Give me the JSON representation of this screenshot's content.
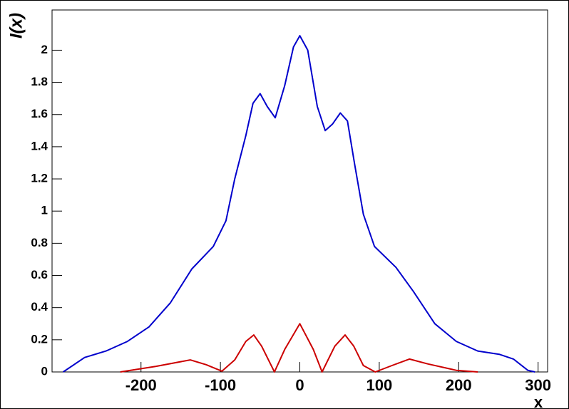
{
  "chart_data": {
    "type": "line",
    "x_label": "x",
    "y_label": "I(x)",
    "series": [
      {
        "color": "#0000cc",
        "x": [
          -298,
          -271,
          -244,
          -217,
          -190,
          -163,
          -136,
          -109,
          -93,
          -82,
          -68,
          -59,
          -50,
          -41,
          -31,
          -19,
          -8,
          0,
          10,
          22,
          32,
          41,
          51,
          60,
          69,
          80,
          94,
          121,
          143,
          170,
          197,
          224,
          251,
          269,
          287,
          296
        ],
        "values": [
          0,
          0.09,
          0.13,
          0.19,
          0.28,
          0.43,
          0.64,
          0.78,
          0.94,
          1.2,
          1.47,
          1.67,
          1.73,
          1.65,
          1.58,
          1.78,
          2.02,
          2.09,
          2.0,
          1.65,
          1.5,
          1.54,
          1.61,
          1.56,
          1.29,
          0.98,
          0.78,
          0.65,
          0.5,
          0.3,
          0.19,
          0.13,
          0.11,
          0.08,
          0.01,
          0
        ]
      },
      {
        "color": "#cc0000",
        "x": [
          -226,
          -181,
          -138,
          -118,
          -98,
          -82,
          -68,
          -58,
          -48,
          -32,
          -19,
          0,
          17,
          28,
          44,
          57,
          68,
          80,
          95,
          116,
          138,
          161,
          197,
          224
        ],
        "values": [
          0,
          0.035,
          0.075,
          0.045,
          0.005,
          0.075,
          0.19,
          0.23,
          0.16,
          0,
          0.14,
          0.3,
          0.14,
          0,
          0.16,
          0.23,
          0.16,
          0.04,
          0,
          0.04,
          0.08,
          0.05,
          0.01,
          0
        ]
      }
    ],
    "xlim": [
      -312,
      312
    ],
    "xticks": [
      -200,
      -100,
      0,
      100,
      200,
      300
    ],
    "ylim": [
      0,
      2.25
    ],
    "yticks": [
      0,
      0.2,
      0.4,
      0.6,
      0.8,
      1,
      1.2,
      1.4,
      1.6,
      1.8,
      2
    ]
  }
}
